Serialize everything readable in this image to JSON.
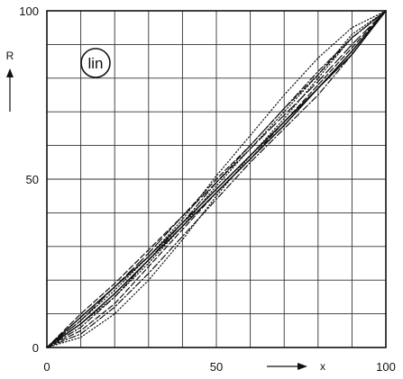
{
  "chart_data": {
    "type": "line",
    "title": "",
    "xlabel": "x",
    "ylabel": "R",
    "xlim": [
      0,
      100
    ],
    "ylim": [
      0,
      100
    ],
    "x_ticks": [
      {
        "value": 0,
        "label": "0"
      },
      {
        "value": 50,
        "label": "50"
      },
      {
        "value": 100,
        "label": "100"
      }
    ],
    "y_ticks": [
      {
        "value": 0,
        "label": "0"
      },
      {
        "value": 50,
        "label": "50"
      },
      {
        "value": 100,
        "label": "100"
      }
    ],
    "grid": true,
    "grid_step": 10,
    "annotation": "lin",
    "series": [
      {
        "style": "solid",
        "x": [
          0,
          10,
          20,
          30,
          40,
          50,
          60,
          70,
          80,
          90,
          100
        ],
        "y": [
          0,
          9,
          18,
          27,
          37,
          47,
          57,
          67,
          77,
          88,
          100
        ]
      },
      {
        "style": "solid",
        "x": [
          0,
          10,
          20,
          30,
          40,
          50,
          60,
          70,
          80,
          90,
          100
        ],
        "y": [
          0,
          7,
          16,
          26,
          36,
          46,
          56,
          66,
          77,
          87,
          100
        ]
      },
      {
        "style": "dotted",
        "x": [
          0,
          10,
          20,
          30,
          40,
          50,
          60,
          70,
          80,
          90,
          100
        ],
        "y": [
          0,
          8,
          17,
          27,
          38,
          51,
          63,
          75,
          86,
          95,
          100
        ]
      },
      {
        "style": "dotted",
        "x": [
          0,
          10,
          20,
          30,
          40,
          50,
          60,
          70,
          80,
          90,
          100
        ],
        "y": [
          0,
          3,
          10,
          20,
          32,
          45,
          57,
          68,
          80,
          92,
          100
        ]
      },
      {
        "style": "dashed",
        "x": [
          0,
          10,
          20,
          30,
          40,
          50,
          60,
          70,
          80,
          90,
          100
        ],
        "y": [
          0,
          10,
          19,
          29,
          39,
          50,
          60,
          71,
          81,
          92,
          100
        ]
      },
      {
        "style": "dashed",
        "x": [
          0,
          10,
          20,
          30,
          40,
          50,
          60,
          70,
          80,
          90,
          100
        ],
        "y": [
          0,
          5,
          13,
          24,
          35,
          46,
          56,
          67,
          78,
          89,
          100
        ]
      },
      {
        "style": "dash-dot",
        "x": [
          0,
          10,
          20,
          30,
          40,
          50,
          60,
          70,
          80,
          90,
          100
        ],
        "y": [
          0,
          6,
          15,
          26,
          37,
          49,
          60,
          71,
          82,
          92,
          100
        ]
      },
      {
        "style": "dash-dot",
        "x": [
          0,
          10,
          20,
          30,
          40,
          50,
          60,
          70,
          80,
          90,
          100
        ],
        "y": [
          0,
          4,
          12,
          22,
          33,
          44,
          55,
          65,
          75,
          87,
          100
        ]
      },
      {
        "style": "long-dash",
        "x": [
          0,
          10,
          20,
          30,
          40,
          50,
          60,
          70,
          80,
          90,
          100
        ],
        "y": [
          0,
          8,
          18,
          28,
          39,
          49,
          59,
          69,
          79,
          90,
          100
        ]
      },
      {
        "style": "dotted",
        "x": [
          0,
          10,
          20,
          30,
          40,
          50,
          60,
          70,
          80,
          90,
          100
        ],
        "y": [
          0,
          7,
          15,
          25,
          36,
          48,
          59,
          70,
          81,
          93,
          100
        ]
      }
    ]
  }
}
